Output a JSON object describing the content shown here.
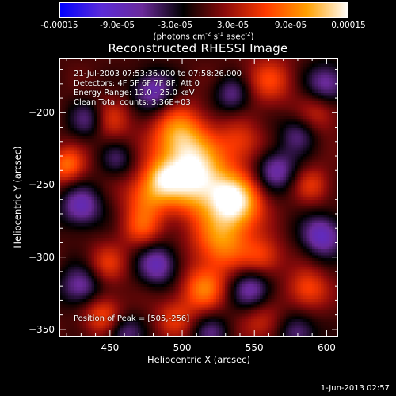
{
  "title": "Reconstructed RHESSI Image",
  "date_stamp": "1-Jun-2013 02:57",
  "info_lines": [
    "21-Jul-2003 07:53:36.000 to 07:58:26.000",
    "Detectors: 4F 5F 6F 7F 8F, Att 0",
    "Energy Range: 12.0 - 25.0 keV",
    "Clean    Total counts: 3.36E+03"
  ],
  "peak_label": "Position of Peak = [505,-256]",
  "colorbar": {
    "labels": [
      "-0.00015",
      "-9.0e-05",
      "-3.0e-05",
      "3.0e-05",
      "9.0e-05",
      "0.00015"
    ],
    "units_prefix": "(photons cm",
    "units_exp1": "-2",
    "units_mid": " s",
    "units_exp2": "-1",
    "units_mid2": " asec",
    "units_exp3": "-2",
    "units_suffix": ")",
    "range": [
      -0.00015,
      0.00015
    ],
    "colors": [
      "#0000ff",
      "#5a2bd8",
      "#6a2a9a",
      "#000000",
      "#8a0a0a",
      "#ff3a00",
      "#ffa000",
      "#ffffff"
    ]
  },
  "chart_data": {
    "type": "heatmap",
    "title": "Reconstructed RHESSI Image",
    "xlabel": "Heliocentric X (arcsec)",
    "ylabel": "Heliocentric Y (arcsec)",
    "xlim": [
      415,
      608
    ],
    "ylim": [
      -355,
      -162
    ],
    "xticks": [
      450,
      500,
      550,
      600
    ],
    "xtick_labels": [
      "450",
      "500",
      "550",
      "600"
    ],
    "yticks": [
      -200,
      -250,
      -300,
      -350
    ],
    "ytick_labels": [
      "−200",
      "−250",
      "−300",
      "−350"
    ],
    "peak": [
      505,
      -256
    ],
    "blobs": [
      {
        "x": 508,
        "y": -245,
        "a": 1.0,
        "s": 17
      },
      {
        "x": 498,
        "y": -215,
        "a": 0.65,
        "s": 14
      },
      {
        "x": 537,
        "y": -262,
        "a": 0.9,
        "s": 13
      },
      {
        "x": 527,
        "y": -290,
        "a": 0.6,
        "s": 14
      },
      {
        "x": 475,
        "y": -258,
        "a": 0.45,
        "s": 11
      },
      {
        "x": 472,
        "y": -280,
        "a": 0.4,
        "s": 10
      },
      {
        "x": 540,
        "y": -220,
        "a": 0.35,
        "s": 11
      },
      {
        "x": 556,
        "y": -300,
        "a": 0.4,
        "s": 10
      },
      {
        "x": 515,
        "y": -322,
        "a": 0.55,
        "s": 11
      },
      {
        "x": 587,
        "y": -322,
        "a": 0.45,
        "s": 10
      },
      {
        "x": 590,
        "y": -250,
        "a": 0.35,
        "s": 9
      },
      {
        "x": 560,
        "y": -178,
        "a": 0.4,
        "s": 12
      },
      {
        "x": 420,
        "y": -236,
        "a": 0.55,
        "s": 9
      },
      {
        "x": 448,
        "y": -305,
        "a": 0.35,
        "s": 10
      },
      {
        "x": 445,
        "y": -340,
        "a": 0.45,
        "s": 10
      },
      {
        "x": 495,
        "y": -342,
        "a": 0.35,
        "s": 10
      },
      {
        "x": 555,
        "y": -345,
        "a": 0.3,
        "s": 10
      },
      {
        "x": 450,
        "y": -205,
        "a": 0.35,
        "s": 10
      },
      {
        "x": 595,
        "y": -200,
        "a": 0.3,
        "s": 10
      },
      {
        "x": 486,
        "y": -245,
        "a": 0.4,
        "s": 9
      },
      {
        "x": 480,
        "y": -185,
        "a": -0.55,
        "s": 10
      },
      {
        "x": 430,
        "y": -265,
        "a": -0.55,
        "s": 10
      },
      {
        "x": 435,
        "y": -205,
        "a": -0.4,
        "s": 9
      },
      {
        "x": 483,
        "y": -305,
        "a": -0.55,
        "s": 10
      },
      {
        "x": 430,
        "y": -320,
        "a": -0.5,
        "s": 10
      },
      {
        "x": 565,
        "y": -240,
        "a": -0.5,
        "s": 10
      },
      {
        "x": 597,
        "y": -285,
        "a": -0.6,
        "s": 10
      },
      {
        "x": 600,
        "y": -180,
        "a": -0.5,
        "s": 10
      },
      {
        "x": 548,
        "y": -322,
        "a": -0.5,
        "s": 10
      },
      {
        "x": 535,
        "y": -188,
        "a": -0.4,
        "s": 9
      },
      {
        "x": 460,
        "y": -352,
        "a": -0.4,
        "s": 9
      },
      {
        "x": 520,
        "y": -352,
        "a": -0.35,
        "s": 9
      },
      {
        "x": 580,
        "y": -352,
        "a": -0.4,
        "s": 9
      },
      {
        "x": 580,
        "y": -215,
        "a": -0.35,
        "s": 9
      },
      {
        "x": 455,
        "y": -232,
        "a": -0.3,
        "s": 8
      }
    ]
  }
}
